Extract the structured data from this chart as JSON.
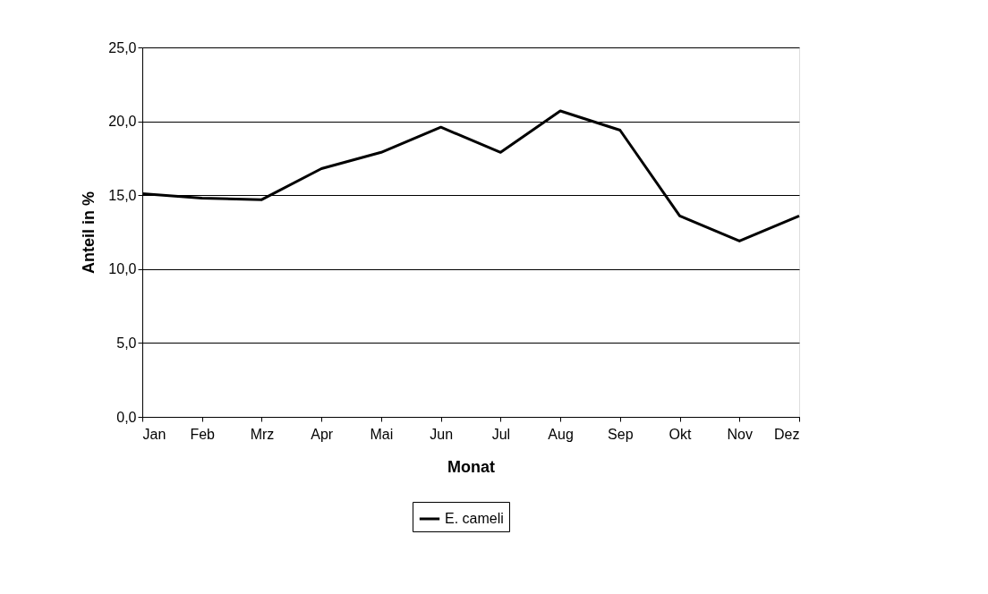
{
  "chart_data": {
    "type": "line",
    "xlabel": "Monat",
    "ylabel": "Anteil in %",
    "categories": [
      "Jan",
      "Feb",
      "Mrz",
      "Apr",
      "Mai",
      "Jun",
      "Jul",
      "Aug",
      "Sep",
      "Okt",
      "Nov",
      "Dez"
    ],
    "series": [
      {
        "name": "E. cameli",
        "color": "#000000",
        "values": [
          15.1,
          14.8,
          14.7,
          16.8,
          17.9,
          19.6,
          17.9,
          20.7,
          19.4,
          13.6,
          11.9,
          13.6
        ]
      }
    ],
    "ylim": [
      0,
      25
    ],
    "yticks": [
      {
        "value": 0,
        "label": "0,0"
      },
      {
        "value": 5,
        "label": "5,0"
      },
      {
        "value": 10,
        "label": "10,0"
      },
      {
        "value": 15,
        "label": "15,0"
      },
      {
        "value": 20,
        "label": "20,0"
      },
      {
        "value": 25,
        "label": "25,0"
      }
    ],
    "grid": "y",
    "legend": "bottom",
    "marker": "none",
    "line_style": "solid"
  }
}
